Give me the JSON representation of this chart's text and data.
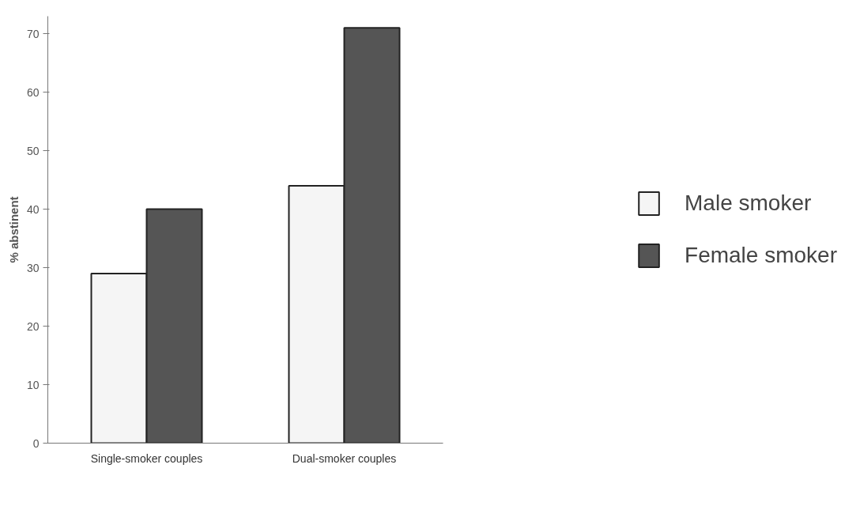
{
  "chart_data": {
    "type": "bar",
    "ylabel": "% abstinent",
    "categories": [
      "Single-smoker couples",
      "Dual-smoker couples"
    ],
    "series": [
      {
        "name": "Male smoker",
        "color": "#f5f5f5",
        "values": [
          29,
          44
        ]
      },
      {
        "name": "Female smoker",
        "color": "#555555",
        "values": [
          40,
          71
        ]
      }
    ],
    "ylim": [
      0,
      73
    ],
    "yticks": [
      0,
      10,
      20,
      30,
      40,
      50,
      60,
      70
    ],
    "grid": false,
    "legend": "right"
  }
}
